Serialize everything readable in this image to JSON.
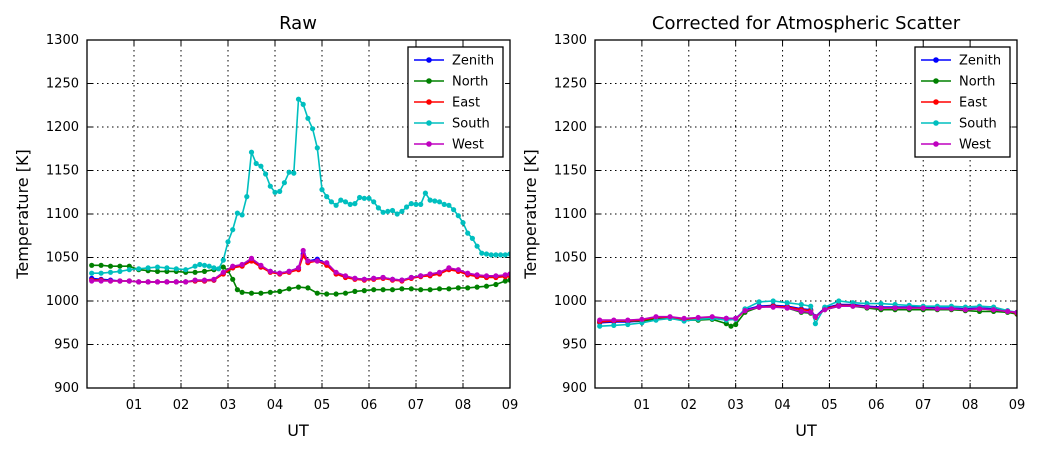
{
  "chart_data": [
    {
      "type": "line",
      "title": "Raw",
      "xlabel": "UT",
      "ylabel": "Temperature [K]",
      "xlim": [
        0,
        9
      ],
      "ylim": [
        900,
        1300
      ],
      "xticks": [
        1,
        2,
        3,
        4,
        5,
        6,
        7,
        8,
        9
      ],
      "xtick_labels": [
        "01",
        "02",
        "03",
        "04",
        "05",
        "06",
        "07",
        "08",
        "09"
      ],
      "yticks": [
        900,
        950,
        1000,
        1050,
        1100,
        1150,
        1200,
        1250,
        1300
      ],
      "grid": true,
      "legend_position": "top-right",
      "series": [
        {
          "name": "Zenith",
          "color": "#0000ff",
          "x": [
            0.1,
            0.3,
            0.5,
            0.7,
            0.9,
            1.1,
            1.3,
            1.5,
            1.7,
            1.9,
            2.1,
            2.3,
            2.5,
            2.7,
            2.9,
            3.1,
            3.3,
            3.5,
            3.7,
            3.9,
            4.1,
            4.3,
            4.5,
            4.6,
            4.7,
            4.9,
            5.1,
            5.3,
            5.5,
            5.7,
            5.9,
            6.1,
            6.3,
            6.5,
            6.7,
            6.9,
            7.1,
            7.3,
            7.5,
            7.7,
            7.9,
            8.1,
            8.3,
            8.5,
            8.7,
            8.9,
            9.0
          ],
          "y": [
            1026,
            1025,
            1024,
            1023,
            1023,
            1022,
            1022,
            1022,
            1022,
            1022,
            1022,
            1023,
            1023,
            1024,
            1032,
            1039,
            1041,
            1047,
            1040,
            1034,
            1032,
            1034,
            1038,
            1054,
            1046,
            1048,
            1043,
            1032,
            1028,
            1026,
            1025,
            1026,
            1027,
            1025,
            1024,
            1027,
            1029,
            1030,
            1032,
            1037,
            1035,
            1031,
            1029,
            1028,
            1028,
            1029,
            1030
          ]
        },
        {
          "name": "North",
          "color": "#008000",
          "x": [
            0.1,
            0.3,
            0.5,
            0.7,
            0.9,
            1.1,
            1.3,
            1.5,
            1.7,
            1.9,
            2.1,
            2.3,
            2.5,
            2.7,
            2.9,
            3.0,
            3.1,
            3.2,
            3.3,
            3.5,
            3.7,
            3.9,
            4.1,
            4.3,
            4.5,
            4.7,
            4.9,
            5.1,
            5.3,
            5.5,
            5.7,
            5.9,
            6.1,
            6.3,
            6.5,
            6.7,
            6.9,
            7.1,
            7.3,
            7.5,
            7.7,
            7.9,
            8.1,
            8.3,
            8.5,
            8.7,
            8.9,
            9.0
          ],
          "y": [
            1041,
            1041,
            1040,
            1040,
            1040,
            1036,
            1035,
            1034,
            1034,
            1034,
            1033,
            1033,
            1034,
            1036,
            1039,
            1035,
            1025,
            1013,
            1010,
            1009,
            1009,
            1010,
            1011,
            1014,
            1016,
            1015,
            1009,
            1008,
            1008,
            1009,
            1011,
            1012,
            1013,
            1013,
            1013,
            1014,
            1014,
            1013,
            1013,
            1014,
            1014,
            1015,
            1015,
            1016,
            1017,
            1019,
            1023,
            1024
          ]
        },
        {
          "name": "East",
          "color": "#ff0000",
          "x": [
            0.1,
            0.3,
            0.5,
            0.7,
            0.9,
            1.1,
            1.3,
            1.5,
            1.7,
            1.9,
            2.1,
            2.3,
            2.5,
            2.7,
            2.9,
            3.1,
            3.3,
            3.5,
            3.7,
            3.9,
            4.1,
            4.3,
            4.5,
            4.6,
            4.7,
            4.9,
            5.1,
            5.3,
            5.5,
            5.7,
            5.9,
            6.1,
            6.3,
            6.5,
            6.7,
            6.9,
            7.1,
            7.3,
            7.5,
            7.7,
            7.9,
            8.1,
            8.3,
            8.5,
            8.7,
            8.9,
            9.0
          ],
          "y": [
            1024,
            1024,
            1023,
            1023,
            1023,
            1022,
            1022,
            1022,
            1022,
            1022,
            1022,
            1023,
            1023,
            1024,
            1031,
            1038,
            1040,
            1046,
            1039,
            1033,
            1031,
            1033,
            1036,
            1052,
            1044,
            1046,
            1041,
            1031,
            1027,
            1025,
            1024,
            1025,
            1026,
            1024,
            1023,
            1026,
            1028,
            1029,
            1031,
            1036,
            1034,
            1030,
            1028,
            1027,
            1027,
            1028,
            1029
          ]
        },
        {
          "name": "South",
          "color": "#00bfbf",
          "x": [
            0.1,
            0.3,
            0.5,
            0.7,
            0.9,
            1.1,
            1.3,
            1.5,
            1.7,
            1.9,
            2.1,
            2.3,
            2.4,
            2.5,
            2.6,
            2.7,
            2.8,
            2.9,
            3.0,
            3.1,
            3.2,
            3.3,
            3.4,
            3.5,
            3.6,
            3.7,
            3.8,
            3.9,
            4.0,
            4.1,
            4.2,
            4.3,
            4.4,
            4.5,
            4.6,
            4.7,
            4.8,
            4.9,
            5.0,
            5.1,
            5.2,
            5.3,
            5.4,
            5.5,
            5.6,
            5.7,
            5.8,
            5.9,
            6.0,
            6.1,
            6.2,
            6.3,
            6.4,
            6.5,
            6.6,
            6.7,
            6.8,
            6.9,
            7.0,
            7.1,
            7.2,
            7.3,
            7.4,
            7.5,
            7.6,
            7.7,
            7.8,
            7.9,
            8.0,
            8.1,
            8.2,
            8.3,
            8.4,
            8.5,
            8.6,
            8.7,
            8.8,
            8.9,
            9.0
          ],
          "y": [
            1032,
            1032,
            1033,
            1034,
            1036,
            1037,
            1038,
            1039,
            1038,
            1037,
            1036,
            1040,
            1042,
            1041,
            1040,
            1038,
            1037,
            1047,
            1068,
            1082,
            1101,
            1099,
            1120,
            1171,
            1158,
            1155,
            1146,
            1132,
            1125,
            1126,
            1136,
            1148,
            1147,
            1232,
            1226,
            1210,
            1198,
            1176,
            1128,
            1120,
            1114,
            1110,
            1116,
            1114,
            1111,
            1112,
            1119,
            1118,
            1118,
            1114,
            1107,
            1102,
            1103,
            1104,
            1100,
            1103,
            1108,
            1112,
            1111,
            1111,
            1124,
            1116,
            1115,
            1114,
            1111,
            1110,
            1105,
            1098,
            1090,
            1078,
            1072,
            1063,
            1055,
            1054,
            1053,
            1053,
            1053,
            1053,
            1054
          ]
        },
        {
          "name": "West",
          "color": "#bf00bf",
          "x": [
            0.1,
            0.3,
            0.5,
            0.7,
            0.9,
            1.1,
            1.3,
            1.5,
            1.7,
            1.9,
            2.1,
            2.3,
            2.5,
            2.7,
            2.9,
            3.1,
            3.3,
            3.5,
            3.7,
            3.9,
            4.1,
            4.3,
            4.5,
            4.6,
            4.7,
            4.9,
            5.1,
            5.3,
            5.5,
            5.7,
            5.9,
            6.1,
            6.3,
            6.5,
            6.7,
            6.9,
            7.1,
            7.3,
            7.5,
            7.7,
            7.9,
            8.1,
            8.3,
            8.5,
            8.7,
            8.9,
            9.0
          ],
          "y": [
            1023,
            1023,
            1023,
            1023,
            1023,
            1022,
            1022,
            1022,
            1022,
            1022,
            1022,
            1024,
            1024,
            1025,
            1033,
            1040,
            1042,
            1049,
            1041,
            1034,
            1032,
            1034,
            1038,
            1058,
            1046,
            1046,
            1044,
            1033,
            1029,
            1026,
            1025,
            1026,
            1027,
            1025,
            1024,
            1027,
            1029,
            1031,
            1033,
            1038,
            1036,
            1032,
            1030,
            1029,
            1029,
            1030,
            1031
          ]
        }
      ]
    },
    {
      "type": "line",
      "title": "Corrected for Atmospheric Scatter",
      "xlabel": "UT",
      "ylabel": "Temperature [K]",
      "xlim": [
        0,
        9
      ],
      "ylim": [
        900,
        1300
      ],
      "xticks": [
        1,
        2,
        3,
        4,
        5,
        6,
        7,
        8,
        9
      ],
      "xtick_labels": [
        "01",
        "02",
        "03",
        "04",
        "05",
        "06",
        "07",
        "08",
        "09"
      ],
      "yticks": [
        900,
        950,
        1000,
        1050,
        1100,
        1150,
        1200,
        1250,
        1300
      ],
      "grid": true,
      "legend_position": "top-right",
      "series": [
        {
          "name": "Zenith",
          "color": "#0000ff",
          "x": [
            0.1,
            0.4,
            0.7,
            1.0,
            1.3,
            1.6,
            1.9,
            2.2,
            2.5,
            2.8,
            3.0,
            3.2,
            3.5,
            3.8,
            4.1,
            4.4,
            4.6,
            4.7,
            4.9,
            5.2,
            5.5,
            5.8,
            6.1,
            6.4,
            6.7,
            7.0,
            7.3,
            7.6,
            7.9,
            8.2,
            8.5,
            8.8,
            9.0
          ],
          "y": [
            975,
            976,
            976,
            977,
            980,
            981,
            979,
            980,
            981,
            980,
            980,
            990,
            994,
            995,
            994,
            991,
            990,
            982,
            992,
            996,
            996,
            994,
            993,
            993,
            993,
            993,
            992,
            992,
            991,
            992,
            991,
            988,
            987
          ]
        },
        {
          "name": "North",
          "color": "#008000",
          "x": [
            0.1,
            0.4,
            0.7,
            1.0,
            1.3,
            1.6,
            1.9,
            2.2,
            2.5,
            2.8,
            2.9,
            3.0,
            3.2,
            3.5,
            3.8,
            4.1,
            4.4,
            4.6,
            4.7,
            4.9,
            5.2,
            5.5,
            5.8,
            6.1,
            6.4,
            6.7,
            7.0,
            7.3,
            7.6,
            7.9,
            8.2,
            8.5,
            8.8,
            9.0
          ],
          "y": [
            976,
            977,
            977,
            977,
            979,
            980,
            978,
            978,
            979,
            974,
            971,
            973,
            987,
            993,
            994,
            992,
            987,
            986,
            982,
            990,
            994,
            994,
            992,
            990,
            990,
            990,
            990,
            990,
            990,
            989,
            988,
            988,
            987,
            985
          ]
        },
        {
          "name": "East",
          "color": "#ff0000",
          "x": [
            0.1,
            0.4,
            0.7,
            1.0,
            1.3,
            1.6,
            1.9,
            2.2,
            2.5,
            2.8,
            3.0,
            3.2,
            3.5,
            3.8,
            4.1,
            4.4,
            4.6,
            4.7,
            4.9,
            5.2,
            5.5,
            5.8,
            6.1,
            6.4,
            6.7,
            7.0,
            7.3,
            7.6,
            7.9,
            8.2,
            8.5,
            8.8,
            9.0
          ],
          "y": [
            976,
            977,
            977,
            978,
            981,
            981,
            979,
            980,
            981,
            979,
            979,
            989,
            993,
            994,
            993,
            990,
            989,
            981,
            991,
            995,
            995,
            993,
            992,
            992,
            992,
            992,
            991,
            991,
            990,
            991,
            990,
            988,
            986
          ]
        },
        {
          "name": "South",
          "color": "#00bfbf",
          "x": [
            0.1,
            0.4,
            0.7,
            1.0,
            1.3,
            1.6,
            1.9,
            2.2,
            2.5,
            2.8,
            3.0,
            3.2,
            3.5,
            3.8,
            4.1,
            4.4,
            4.6,
            4.7,
            4.9,
            5.2,
            5.5,
            5.8,
            6.1,
            6.4,
            6.7,
            7.0,
            7.3,
            7.6,
            7.9,
            8.2,
            8.5,
            8.8,
            9.0
          ],
          "y": [
            971,
            972,
            973,
            975,
            978,
            980,
            977,
            979,
            980,
            978,
            979,
            991,
            999,
            1000,
            998,
            996,
            994,
            974,
            993,
            1000,
            998,
            997,
            997,
            996,
            995,
            994,
            994,
            994,
            993,
            994,
            993,
            989,
            987
          ]
        },
        {
          "name": "West",
          "color": "#bf00bf",
          "x": [
            0.1,
            0.4,
            0.7,
            1.0,
            1.3,
            1.6,
            1.9,
            2.2,
            2.5,
            2.8,
            3.0,
            3.2,
            3.5,
            3.8,
            4.1,
            4.4,
            4.6,
            4.7,
            4.9,
            5.2,
            5.5,
            5.8,
            6.1,
            6.4,
            6.7,
            7.0,
            7.3,
            7.6,
            7.9,
            8.2,
            8.5,
            8.8,
            9.0
          ],
          "y": [
            978,
            978,
            978,
            979,
            982,
            982,
            980,
            981,
            982,
            980,
            980,
            989,
            993,
            993,
            992,
            988,
            987,
            982,
            990,
            994,
            994,
            993,
            992,
            992,
            992,
            992,
            991,
            991,
            990,
            991,
            990,
            988,
            987
          ]
        }
      ]
    }
  ]
}
